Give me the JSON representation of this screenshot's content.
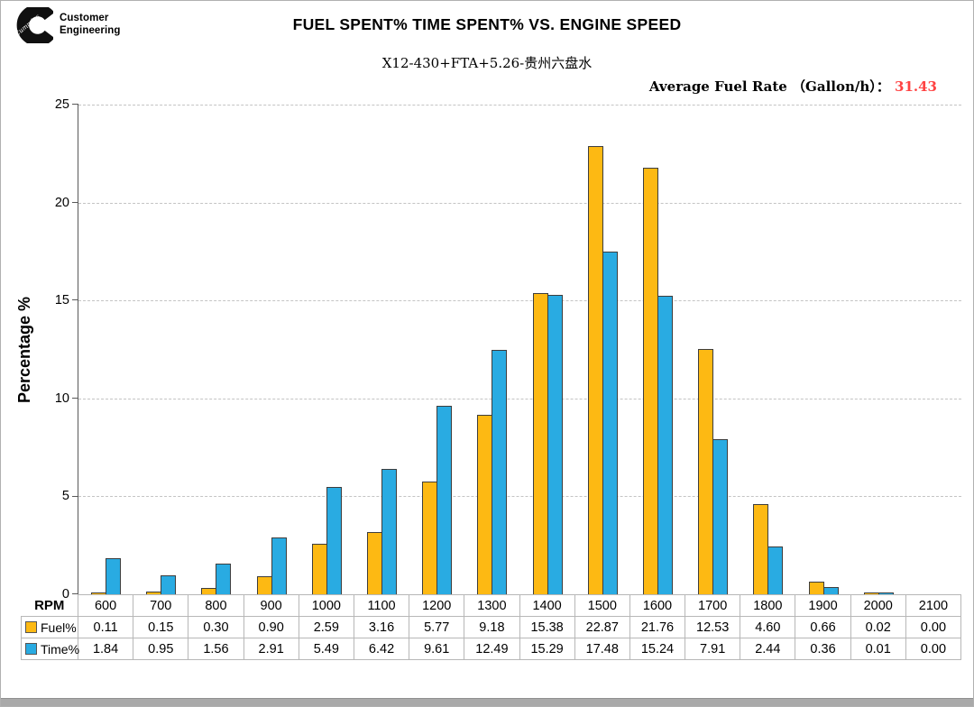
{
  "header": {
    "logo": {
      "brand_script": "Cummins",
      "line1": "Customer",
      "line2": "Engineering"
    },
    "title": "FUEL SPENT% TIME SPENT% VS. ENGINE SPEED",
    "subtitle": "X12-430+FTA+5.26-贵州六盘水",
    "avg_fuel_rate_label": "Average Fuel Rate （Gallon/h）：",
    "avg_fuel_rate_value": "31.43"
  },
  "chart_data": {
    "type": "bar",
    "title": "FUEL SPENT% TIME SPENT% VS. ENGINE SPEED",
    "subtitle": "X12-430+FTA+5.26-贵州六盘水",
    "xlabel": "RPM",
    "ylabel": "Percentage %",
    "ylim": [
      0,
      25
    ],
    "yticks": [
      0,
      5,
      10,
      15,
      20,
      25
    ],
    "grid": "horizontal-dashed",
    "legend_position": "table-row-headers",
    "categories": [
      "600",
      "700",
      "800",
      "900",
      "1000",
      "1100",
      "1200",
      "1300",
      "1400",
      "1500",
      "1600",
      "1700",
      "1800",
      "1900",
      "2000",
      "2100"
    ],
    "series": [
      {
        "name": "Fuel%",
        "color": "#FDB913",
        "values": [
          0.11,
          0.15,
          0.3,
          0.9,
          2.59,
          3.16,
          5.77,
          9.18,
          15.38,
          22.87,
          21.76,
          12.53,
          4.6,
          0.66,
          0.02,
          0.0
        ]
      },
      {
        "name": "Time%",
        "color": "#29ABE2",
        "values": [
          1.84,
          0.95,
          1.56,
          2.91,
          5.49,
          6.42,
          9.61,
          12.49,
          15.29,
          17.48,
          15.24,
          7.91,
          2.44,
          0.36,
          0.01,
          0.0
        ]
      }
    ],
    "annotation": "Average Fuel Rate （Gallon/h）： 31.43"
  },
  "colors": {
    "fuel_bar": "#FDB913",
    "time_bar": "#29ABE2",
    "bar_border": "#3D3D3D",
    "avg_value_red": "#FF4242",
    "axis": "#595959"
  }
}
